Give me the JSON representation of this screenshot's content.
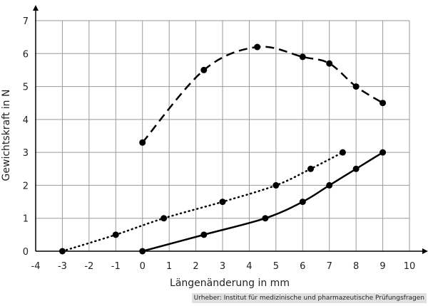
{
  "chart_data": {
    "type": "line",
    "title": "",
    "xlabel": "Längenänderung in mm",
    "ylabel": "Gewichtskraft in N",
    "xlim": [
      -4,
      10
    ],
    "ylim": [
      0,
      7
    ],
    "grid": true,
    "xticks": [
      "-4",
      "-3",
      "-2",
      "-1",
      "0",
      "1",
      "2",
      "3",
      "4",
      "5",
      "6",
      "7",
      "8",
      "9",
      "10"
    ],
    "yticks": [
      "0",
      "1",
      "2",
      "3",
      "4",
      "5",
      "6",
      "7"
    ],
    "series": [
      {
        "style": "dashed",
        "x": [
          0,
          2.3,
          4.3,
          6,
          7,
          8,
          9
        ],
        "y": [
          3.3,
          5.5,
          6.2,
          5.9,
          5.7,
          5.0,
          4.5
        ]
      },
      {
        "style": "dotted",
        "x": [
          -3,
          -1,
          0.8,
          3,
          5,
          6.3,
          7.5
        ],
        "y": [
          0,
          0.5,
          1.0,
          1.5,
          2.0,
          2.5,
          3.0
        ]
      },
      {
        "style": "solid",
        "x": [
          0,
          2.3,
          4.6,
          6,
          7,
          8,
          9
        ],
        "y": [
          0,
          0.5,
          1.0,
          1.5,
          2.0,
          2.5,
          3.0
        ]
      }
    ]
  },
  "credit": "Urheber: Institut für medizinische und pharmazeutische Prüfungsfragen"
}
